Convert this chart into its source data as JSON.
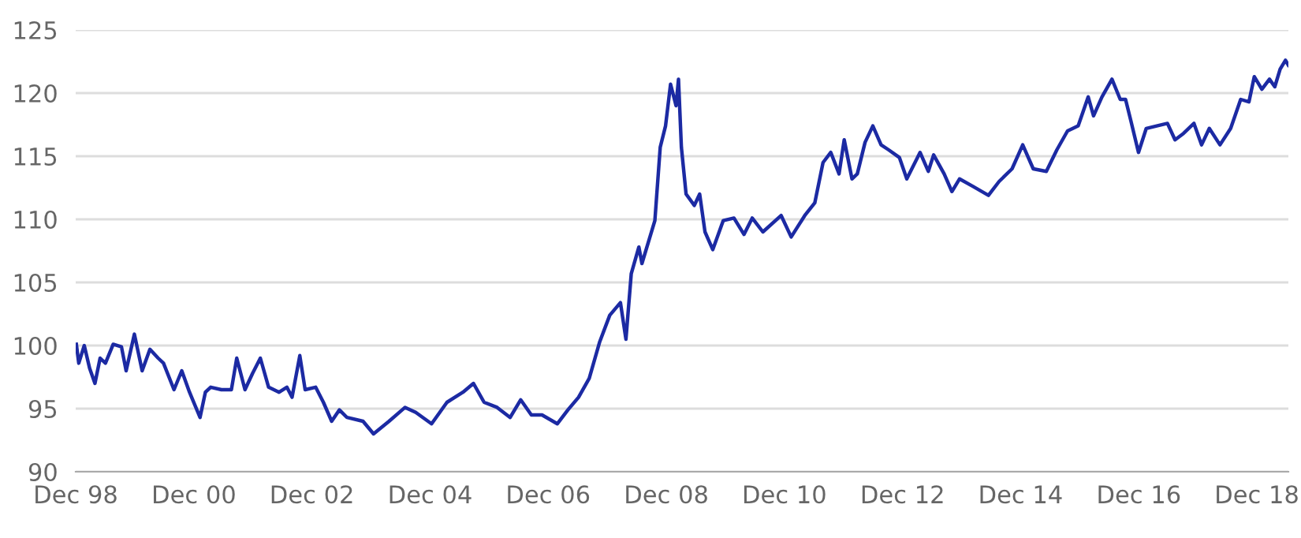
{
  "chart_data": {
    "type": "line",
    "color": "#1c2aa3",
    "grid": "y",
    "line_style": "solid",
    "marker": "none",
    "x": [
      "1998-12-05",
      "1998-12-20",
      "1999-01-23",
      "1999-02-25",
      "1999-03-30",
      "1999-05-01",
      "1999-06-03",
      "1999-07-21",
      "1999-09-10",
      "1999-10-09",
      "1999-11-29",
      "2000-01-16",
      "2000-03-04",
      "2000-04-24",
      "2000-05-27",
      "2000-07-31",
      "2000-09-17",
      "2000-11-04",
      "2001-01-08",
      "2001-02-10",
      "2001-03-15",
      "2001-05-20",
      "2001-07-21",
      "2001-08-23",
      "2001-10-13",
      "2001-11-29",
      "2002-01-16",
      "2002-03-08",
      "2002-05-12",
      "2002-06-29",
      "2002-07-31",
      "2002-09-17",
      "2002-10-20",
      "2002-12-24",
      "2003-02-10",
      "2003-04-02",
      "2003-05-20",
      "2003-07-06",
      "2003-10-13",
      "2003-12-17",
      "2004-03-22",
      "2004-06-29",
      "2004-09-03",
      "2004-12-10",
      "2005-03-15",
      "2005-06-22",
      "2005-08-26",
      "2005-10-31",
      "2006-01-19",
      "2006-04-10",
      "2006-06-14",
      "2006-08-19",
      "2006-10-24",
      "2007-01-27",
      "2007-04-02",
      "2007-06-07",
      "2007-08-12",
      "2007-10-16",
      "2007-12-17",
      "2008-02-21",
      "2008-03-26",
      "2008-04-28",
      "2008-06-14",
      "2008-07-03",
      "2008-09-21",
      "2008-10-24",
      "2008-11-26",
      "2008-12-27",
      "2009-01-30",
      "2009-02-14",
      "2009-03-04",
      "2009-04-02",
      "2009-05-23",
      "2009-06-25",
      "2009-07-28",
      "2009-09-14",
      "2009-11-18",
      "2010-01-23",
      "2010-03-26",
      "2010-05-16",
      "2010-07-21",
      "2010-11-11",
      "2011-01-12",
      "2011-04-06",
      "2011-06-07",
      "2011-07-28",
      "2011-09-14",
      "2011-11-04",
      "2011-12-06",
      "2012-01-23",
      "2012-02-25",
      "2012-04-13",
      "2012-05-31",
      "2012-07-21",
      "2012-09-06",
      "2012-11-11",
      "2012-12-27",
      "2013-03-19",
      "2013-05-09",
      "2013-06-11",
      "2013-08-15",
      "2013-10-02",
      "2013-11-18",
      "2014-02-10",
      "2014-05-16",
      "2014-07-21",
      "2014-10-09",
      "2014-12-14",
      "2015-02-17",
      "2015-05-09",
      "2015-07-13",
      "2015-09-17",
      "2015-11-22",
      "2016-01-23",
      "2016-02-25",
      "2016-04-17",
      "2016-06-18",
      "2016-08-08",
      "2016-09-10",
      "2016-10-13",
      "2016-11-29",
      "2017-01-16",
      "2017-03-22",
      "2017-05-27",
      "2017-07-13",
      "2017-09-03",
      "2017-11-07",
      "2017-12-24",
      "2018-02-10",
      "2018-04-17",
      "2018-06-22",
      "2018-08-23",
      "2018-10-13",
      "2018-11-15",
      "2019-01-01",
      "2019-02-17",
      "2019-03-22",
      "2019-04-24",
      "2019-05-27",
      "2019-06-14"
    ],
    "values": [
      100.1,
      98.6,
      100.0,
      98.2,
      97.0,
      99.0,
      98.6,
      100.1,
      99.9,
      98.0,
      100.9,
      98.0,
      99.7,
      99.0,
      98.6,
      96.5,
      98.0,
      96.3,
      94.3,
      96.3,
      96.7,
      96.5,
      96.5,
      99.0,
      96.5,
      97.8,
      99.0,
      96.7,
      96.3,
      96.7,
      95.9,
      99.2,
      96.5,
      96.7,
      95.5,
      94.0,
      94.9,
      94.3,
      94.0,
      93.0,
      94.0,
      95.1,
      94.7,
      93.8,
      95.5,
      96.3,
      97.0,
      95.5,
      95.1,
      94.3,
      95.7,
      94.5,
      94.5,
      93.8,
      94.9,
      95.9,
      97.4,
      100.3,
      102.4,
      103.4,
      100.5,
      105.7,
      107.8,
      106.5,
      109.9,
      115.7,
      117.4,
      120.7,
      119.0,
      121.1,
      115.7,
      112.0,
      111.1,
      112.0,
      109.0,
      107.6,
      109.9,
      110.1,
      108.8,
      110.1,
      109.0,
      110.3,
      108.6,
      110.3,
      111.3,
      114.5,
      115.3,
      113.6,
      116.3,
      113.2,
      113.6,
      116.1,
      117.4,
      115.9,
      115.5,
      114.9,
      113.2,
      115.3,
      113.8,
      115.1,
      113.6,
      112.2,
      113.2,
      112.6,
      111.9,
      113.0,
      114.0,
      115.9,
      114.0,
      113.8,
      115.5,
      117.0,
      117.4,
      119.7,
      118.2,
      119.7,
      121.1,
      119.5,
      119.5,
      117.8,
      115.3,
      117.2,
      117.4,
      117.6,
      116.3,
      116.8,
      117.6,
      115.9,
      117.2,
      115.9,
      117.2,
      119.5,
      119.3,
      121.3,
      120.3,
      121.1,
      120.5,
      121.9,
      122.6,
      122.2
    ],
    "xlim": [
      "1998-12-01",
      "2019-06-14"
    ],
    "xticks": [
      {
        "value": "1998-12-01",
        "label": "Dec 98"
      },
      {
        "value": "2000-12-01",
        "label": "Dec 00"
      },
      {
        "value": "2002-12-01",
        "label": "Dec 02"
      },
      {
        "value": "2004-12-01",
        "label": "Dec 04"
      },
      {
        "value": "2006-12-01",
        "label": "Dec 06"
      },
      {
        "value": "2008-12-01",
        "label": "Dec 08"
      },
      {
        "value": "2010-12-01",
        "label": "Dec 10"
      },
      {
        "value": "2012-12-01",
        "label": "Dec 12"
      },
      {
        "value": "2014-12-01",
        "label": "Dec 14"
      },
      {
        "value": "2016-12-01",
        "label": "Dec 16"
      },
      {
        "value": "2018-12-01",
        "label": "Dec 18"
      }
    ],
    "ylim": [
      90,
      125
    ],
    "yticks": [
      90,
      95,
      100,
      105,
      110,
      115,
      120,
      125
    ]
  }
}
